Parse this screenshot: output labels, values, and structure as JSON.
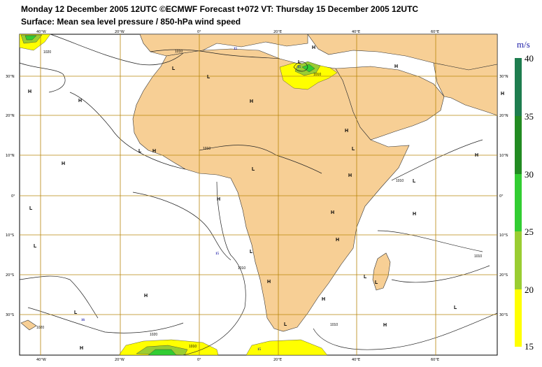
{
  "header": {
    "line1": "Monday 12 December 2005 12UTC ©ECMWF Forecast t+072 VT: Thursday 15 December 2005 12UTC",
    "line2": "Surface: Mean sea level pressure / 850-hPa wind speed"
  },
  "legend": {
    "unit": "m/s",
    "levels": [
      "40",
      "35",
      "30",
      "25",
      "20",
      "15"
    ],
    "colors": {
      "15_20": "#ffff00",
      "20_25": "#9acd32",
      "25_30": "#32cd32",
      "30_35": "#228b22",
      "35_40": "#1e7d4f"
    }
  },
  "map": {
    "land_color": "#f7cf95",
    "grid_color": "#b8860b",
    "lon_labels": [
      "40°W",
      "20°W",
      "0°",
      "20°E",
      "40°E",
      "60°E"
    ],
    "lat_labels": [
      "30°N",
      "20°N",
      "10°N",
      "0°",
      "10°S",
      "20°S",
      "30°S"
    ],
    "isobar_labels": [
      "1020",
      "1010",
      "1010",
      "1010",
      "1010",
      "1010",
      "1010",
      "1020",
      "1010",
      "1010",
      "1020"
    ],
    "pressure_centers": [
      "H",
      "H",
      "H",
      "L",
      "L",
      "H",
      "L",
      "L",
      "H",
      "H",
      "H",
      "L",
      "H",
      "H",
      "L",
      "H",
      "L",
      "H",
      "H",
      "L",
      "L",
      "H",
      "H",
      "L",
      "H",
      "H",
      "L",
      "L",
      "L",
      "L",
      "H",
      "L",
      "H",
      "H",
      "H"
    ],
    "wind_labels": [
      "15",
      "16",
      "15",
      "15",
      "15"
    ]
  }
}
